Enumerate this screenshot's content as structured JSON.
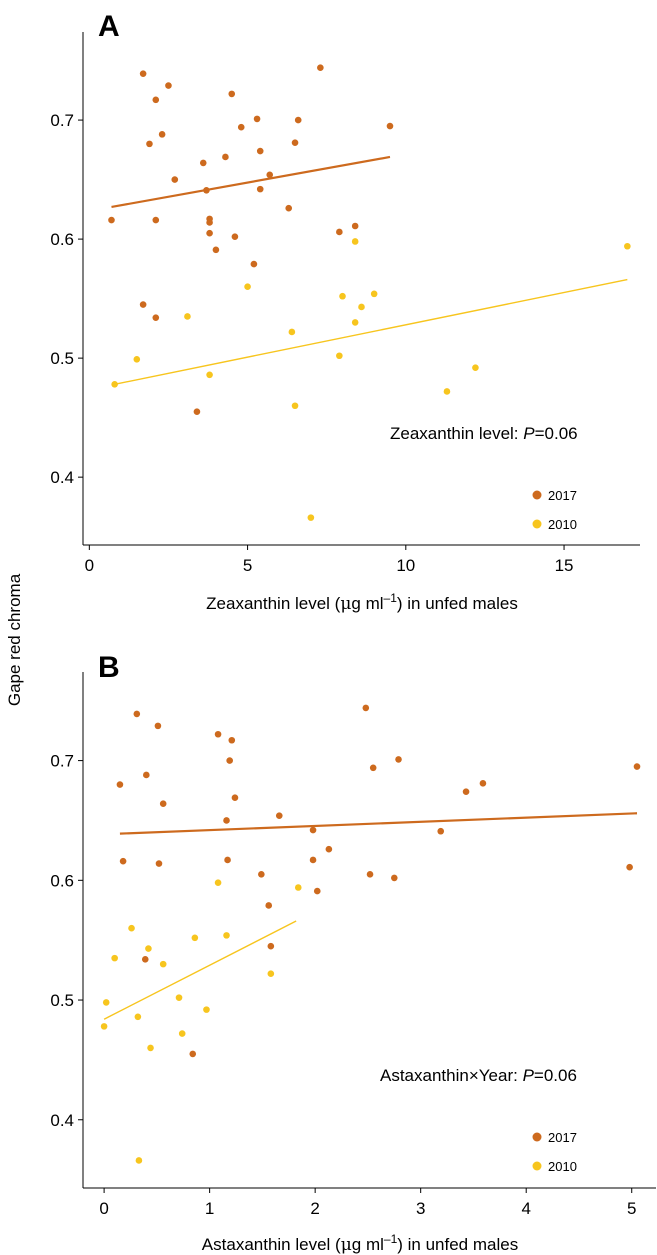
{
  "colors": {
    "y2017": "#CD6A1E",
    "y2010": "#F7C51E"
  },
  "shared_ylabel": "Gape red chroma",
  "chart_data": [
    {
      "type": "scatter",
      "panel": "A",
      "xlabel_pre": "Zeaxanthin level (",
      "xlabel_mu": "μ",
      "xlabel_post": "g ml",
      "xlabel_exp": "–1",
      "xlabel_tail": ") in unfed males",
      "xlim": [
        -0.2,
        17.4
      ],
      "ylim": [
        0.343,
        0.774
      ],
      "xticks": [
        0,
        5,
        10,
        15
      ],
      "yticks": [
        0.4,
        0.5,
        0.6,
        0.7
      ],
      "annotation": {
        "pre": "Zeaxanthin level: ",
        "p": "P",
        "post": "=0.06"
      },
      "legend": [
        "2017",
        "2010"
      ],
      "series": [
        {
          "name": "2017",
          "points": [
            [
              0.7,
              0.616
            ],
            [
              1.7,
              0.739
            ],
            [
              1.7,
              0.545
            ],
            [
              1.9,
              0.68
            ],
            [
              2.1,
              0.717
            ],
            [
              2.1,
              0.616
            ],
            [
              2.1,
              0.534
            ],
            [
              2.3,
              0.688
            ],
            [
              2.5,
              0.729
            ],
            [
              2.7,
              0.65
            ],
            [
              3.4,
              0.455
            ],
            [
              3.6,
              0.664
            ],
            [
              3.7,
              0.641
            ],
            [
              3.8,
              0.617
            ],
            [
              3.8,
              0.614
            ],
            [
              3.8,
              0.605
            ],
            [
              4.0,
              0.591
            ],
            [
              4.3,
              0.669
            ],
            [
              4.5,
              0.722
            ],
            [
              4.6,
              0.602
            ],
            [
              4.8,
              0.694
            ],
            [
              5.2,
              0.579
            ],
            [
              5.3,
              0.701
            ],
            [
              5.4,
              0.674
            ],
            [
              5.4,
              0.642
            ],
            [
              5.7,
              0.654
            ],
            [
              6.3,
              0.626
            ],
            [
              6.5,
              0.681
            ],
            [
              6.6,
              0.7
            ],
            [
              7.3,
              0.744
            ],
            [
              7.9,
              0.606
            ],
            [
              8.4,
              0.611
            ],
            [
              9.5,
              0.695
            ]
          ],
          "fit": [
            [
              0.7,
              0.627
            ],
            [
              9.5,
              0.669
            ]
          ]
        },
        {
          "name": "2010",
          "points": [
            [
              0.8,
              0.478
            ],
            [
              1.5,
              0.499
            ],
            [
              3.1,
              0.535
            ],
            [
              3.8,
              0.486
            ],
            [
              5.0,
              0.56
            ],
            [
              6.4,
              0.522
            ],
            [
              6.5,
              0.46
            ],
            [
              7.0,
              0.366
            ],
            [
              7.9,
              0.502
            ],
            [
              8.0,
              0.552
            ],
            [
              8.4,
              0.53
            ],
            [
              8.4,
              0.598
            ],
            [
              8.6,
              0.543
            ],
            [
              9.0,
              0.554
            ],
            [
              11.3,
              0.472
            ],
            [
              12.2,
              0.492
            ],
            [
              17.0,
              0.594
            ]
          ],
          "fit": [
            [
              0.8,
              0.478
            ],
            [
              17.0,
              0.566
            ]
          ]
        }
      ]
    },
    {
      "type": "scatter",
      "panel": "B",
      "xlabel_pre": "Astaxanthin level (",
      "xlabel_mu": "μ",
      "xlabel_post": "g ml",
      "xlabel_exp": "–1",
      "xlabel_tail": ") in unfed males",
      "xlim": [
        -0.2,
        5.23
      ],
      "ylim": [
        0.343,
        0.774
      ],
      "xticks": [
        0,
        1,
        2,
        3,
        4,
        5
      ],
      "yticks": [
        0.4,
        0.5,
        0.6,
        0.7
      ],
      "annotation": {
        "pre": "Astaxanthin",
        "times": "×",
        "mid": "Year: ",
        "p": "P",
        "post": "=0.06"
      },
      "legend": [
        "2017",
        "2010"
      ],
      "series": [
        {
          "name": "2017",
          "points": [
            [
              0.15,
              0.68
            ],
            [
              0.18,
              0.616
            ],
            [
              0.31,
              0.739
            ],
            [
              0.39,
              0.534
            ],
            [
              0.4,
              0.688
            ],
            [
              0.51,
              0.729
            ],
            [
              0.52,
              0.614
            ],
            [
              0.56,
              0.664
            ],
            [
              0.84,
              0.455
            ],
            [
              1.08,
              0.722
            ],
            [
              1.16,
              0.65
            ],
            [
              1.17,
              0.617
            ],
            [
              1.19,
              0.7
            ],
            [
              1.21,
              0.717
            ],
            [
              1.24,
              0.669
            ],
            [
              1.49,
              0.605
            ],
            [
              1.56,
              0.579
            ],
            [
              1.58,
              0.545
            ],
            [
              1.66,
              0.654
            ],
            [
              1.98,
              0.642
            ],
            [
              1.98,
              0.617
            ],
            [
              2.02,
              0.591
            ],
            [
              2.13,
              0.626
            ],
            [
              2.48,
              0.744
            ],
            [
              2.52,
              0.605
            ],
            [
              2.55,
              0.694
            ],
            [
              2.75,
              0.602
            ],
            [
              2.79,
              0.701
            ],
            [
              3.19,
              0.641
            ],
            [
              3.43,
              0.674
            ],
            [
              3.59,
              0.681
            ],
            [
              4.98,
              0.611
            ],
            [
              5.05,
              0.695
            ]
          ],
          "fit": [
            [
              0.15,
              0.639
            ],
            [
              5.05,
              0.656
            ]
          ]
        },
        {
          "name": "2010",
          "points": [
            [
              0.0,
              0.478
            ],
            [
              0.02,
              0.498
            ],
            [
              0.1,
              0.535
            ],
            [
              0.26,
              0.56
            ],
            [
              0.32,
              0.486
            ],
            [
              0.33,
              0.366
            ],
            [
              0.42,
              0.543
            ],
            [
              0.44,
              0.46
            ],
            [
              0.56,
              0.53
            ],
            [
              0.71,
              0.502
            ],
            [
              0.74,
              0.472
            ],
            [
              0.86,
              0.552
            ],
            [
              0.97,
              0.492
            ],
            [
              1.08,
              0.598
            ],
            [
              1.16,
              0.554
            ],
            [
              1.58,
              0.522
            ],
            [
              1.84,
              0.594
            ]
          ],
          "fit": [
            [
              0.0,
              0.484
            ],
            [
              1.82,
              0.566
            ]
          ]
        }
      ]
    }
  ]
}
